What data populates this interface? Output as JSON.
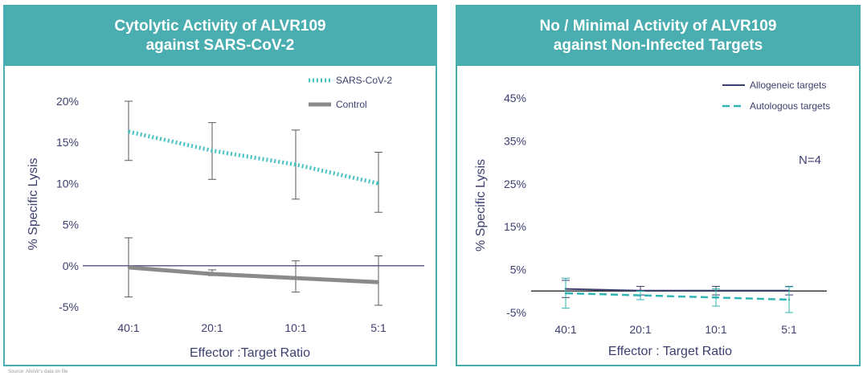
{
  "chart_data": [
    {
      "type": "line",
      "title_lines": [
        "Cytolytic Activity of ALVR109",
        "against SARS-CoV-2"
      ],
      "xlabel": "Effector :Target Ratio",
      "ylabel": "% Specific Lysis",
      "categories": [
        "40:1",
        "20:1",
        "10:1",
        "5:1"
      ],
      "yticks": [
        20,
        15,
        10,
        5,
        0,
        -5
      ],
      "ytick_labels": [
        "20%",
        "15%",
        "10%",
        "5%",
        "0%",
        "-5%"
      ],
      "ylim": [
        -5,
        20
      ],
      "grid": false,
      "legend_position": "top-right",
      "series": [
        {
          "name": "SARS-CoV-2",
          "color": "#49c2c3",
          "style": "dotted",
          "values": [
            16.3,
            14.0,
            12.3,
            10.0
          ],
          "err_low": [
            12.8,
            10.5,
            8.1,
            6.5
          ],
          "err_high": [
            20.0,
            17.4,
            16.5,
            13.8
          ]
        },
        {
          "name": "Control",
          "color": "#8a8a8a",
          "style": "solid",
          "values": [
            -0.2,
            -1.0,
            -1.5,
            -2.0
          ],
          "err_low": [
            -3.8,
            -1.2,
            -3.2,
            -4.8
          ],
          "err_high": [
            3.4,
            -0.5,
            0.6,
            1.2
          ]
        }
      ]
    },
    {
      "type": "line",
      "title_lines": [
        "No / Minimal Activity of ALVR109",
        "against Non-Infected Targets"
      ],
      "xlabel": "Effector : Target Ratio",
      "ylabel": "% Specific Lysis",
      "categories": [
        "40:1",
        "20:1",
        "10:1",
        "5:1"
      ],
      "yticks": [
        45,
        35,
        25,
        15,
        5,
        -5
      ],
      "ytick_labels": [
        "45%",
        "35%",
        "25%",
        "15%",
        "5%",
        "-5%"
      ],
      "ylim": [
        -5,
        45
      ],
      "grid": false,
      "legend_position": "top-right",
      "annotation": "N=4",
      "series": [
        {
          "name": "Allogeneic targets",
          "color": "#3d3f6e",
          "style": "solid",
          "values": [
            0.5,
            0.1,
            0.1,
            0.1
          ],
          "err_low": [
            -1.5,
            -0.9,
            -0.9,
            -0.9
          ],
          "err_high": [
            2.5,
            1.1,
            1.1,
            1.1
          ]
        },
        {
          "name": "Autologous targets",
          "color": "#2fb5b2",
          "style": "dashed",
          "values": [
            -0.5,
            -1.0,
            -1.5,
            -2.0
          ],
          "err_low": [
            -4.0,
            -2.0,
            -3.5,
            -5.0
          ],
          "err_high": [
            3.0,
            0.0,
            0.5,
            1.0
          ]
        }
      ]
    }
  ],
  "source_note": "Source: AlloVir's data on file"
}
